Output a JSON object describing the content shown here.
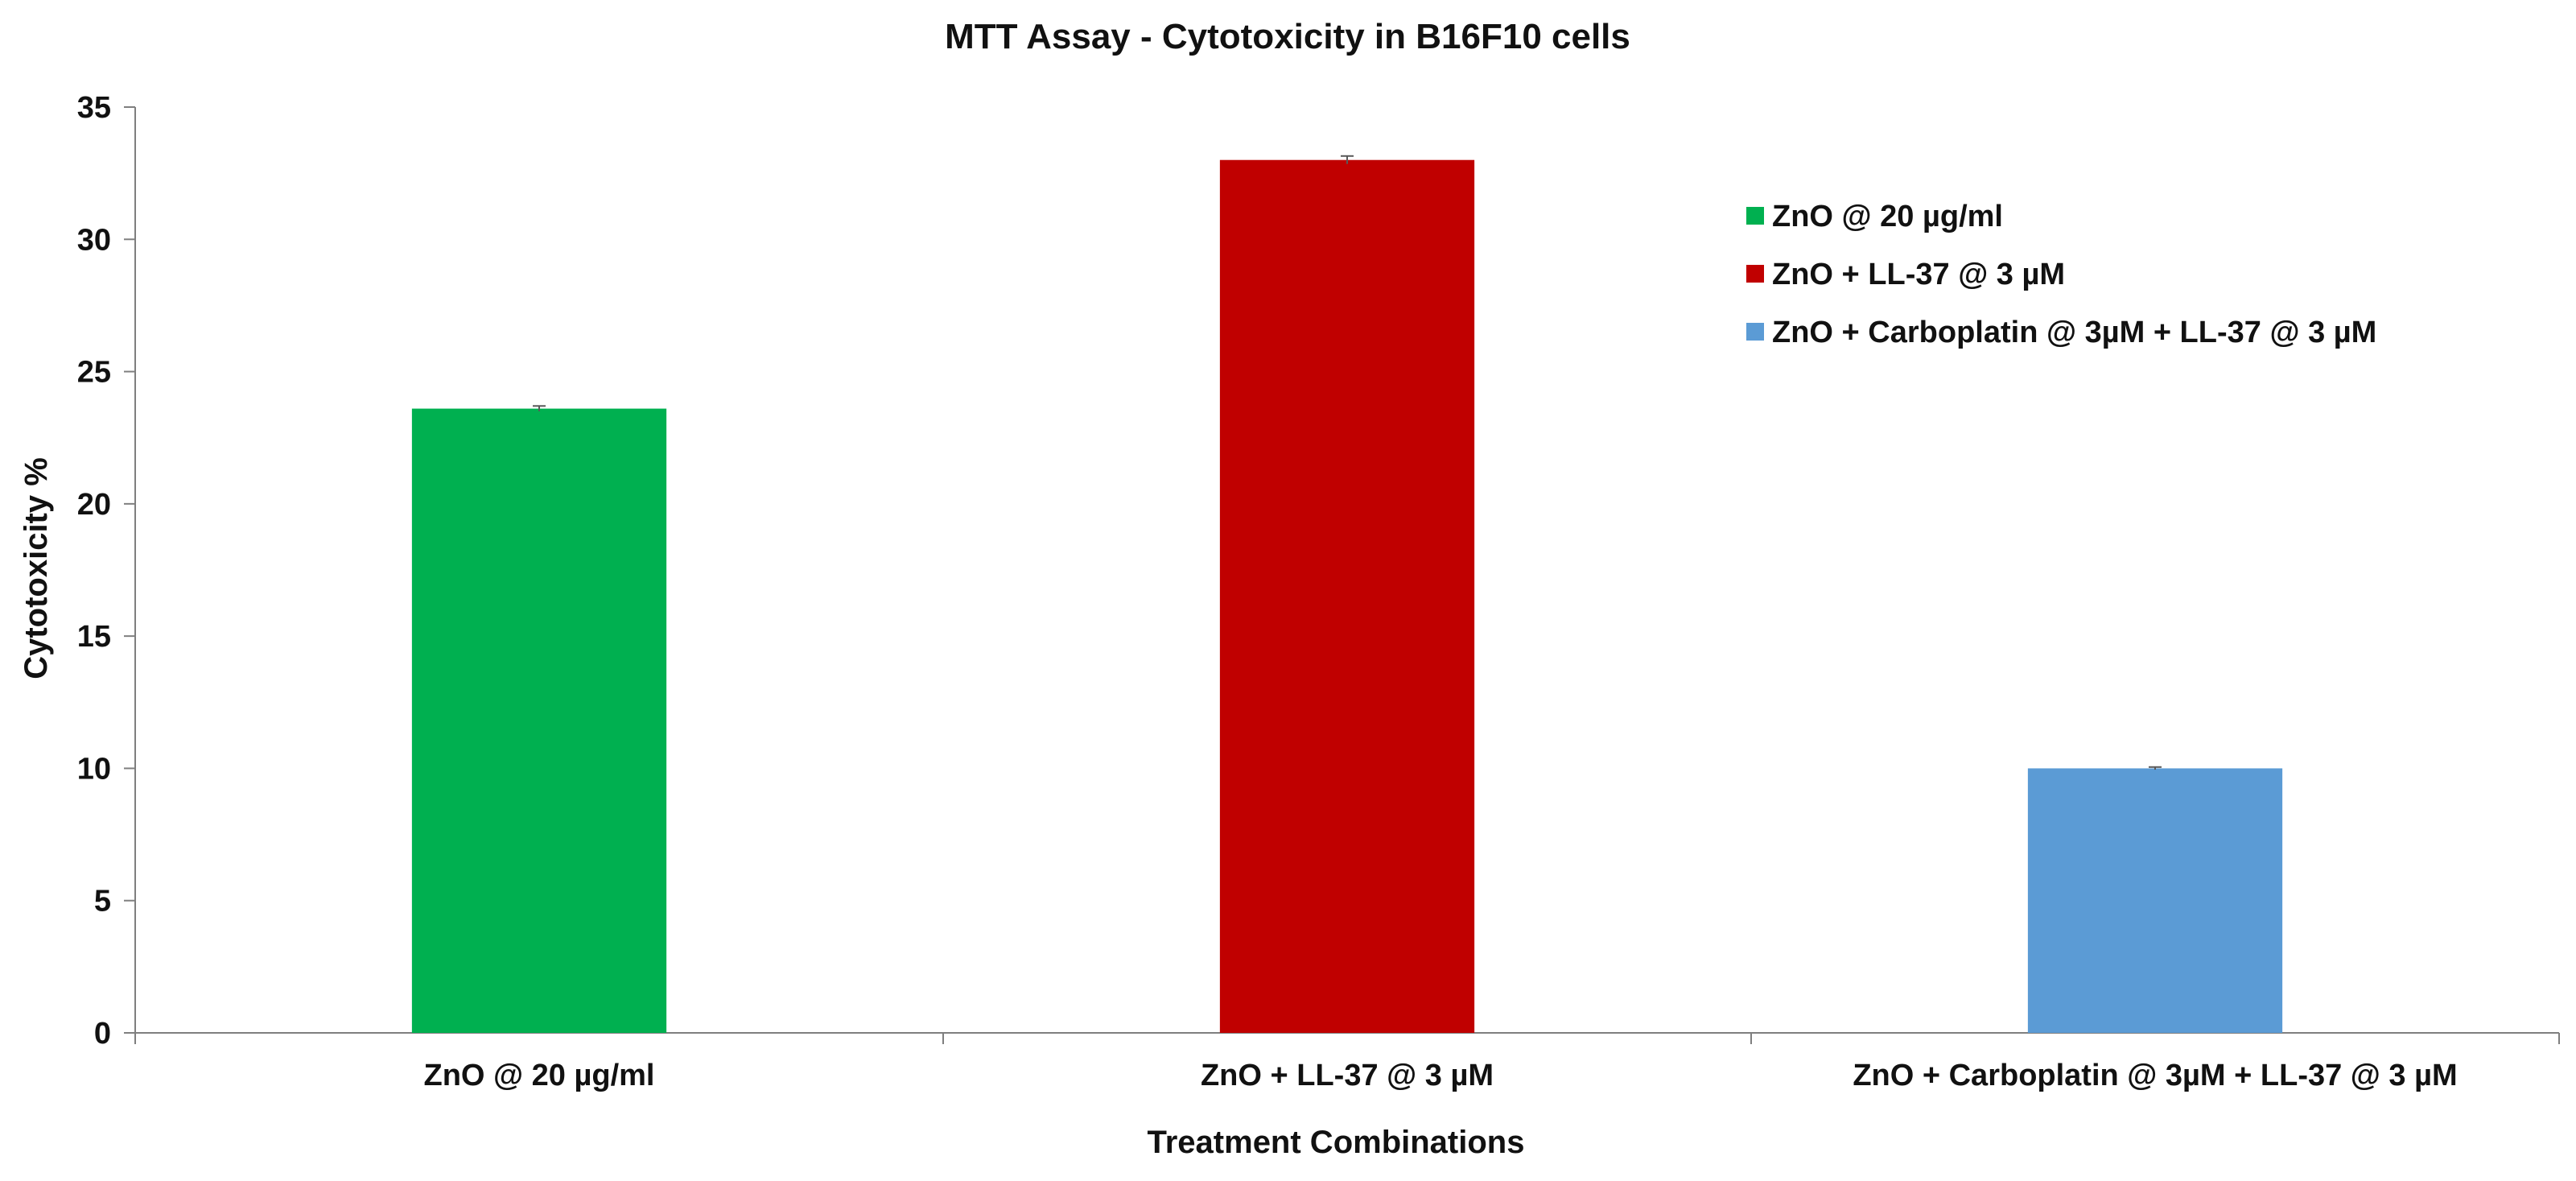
{
  "chart_data": {
    "type": "bar",
    "title": "MTT Assay - Cytotoxicity in B16F10 cells",
    "xlabel": "Treatment Combinations",
    "ylabel": "Cytotoxicity %",
    "ylim": [
      0,
      35
    ],
    "yticks": [
      "0",
      "5",
      "10",
      "15",
      "20",
      "25",
      "30",
      "35"
    ],
    "categories": [
      "ZnO @ 20 µg/ml",
      "ZnO + LL-37 @ 3 µM",
      "ZnO + Carboplatin @ 3µM  + LL-37 @ 3 µM"
    ],
    "values": [
      23.6,
      33.0,
      10.0
    ],
    "errors": [
      0.1,
      0.15,
      0.05
    ],
    "colors": [
      "#00B050",
      "#C00000",
      "#5B9BD5"
    ],
    "legend": {
      "position": "top-right",
      "entries": [
        "ZnO @ 20 µg/ml",
        "ZnO + LL-37 @ 3 µM",
        "ZnO + Carboplatin @ 3µM  + LL-37 @ 3 µM"
      ]
    },
    "grid": false
  }
}
